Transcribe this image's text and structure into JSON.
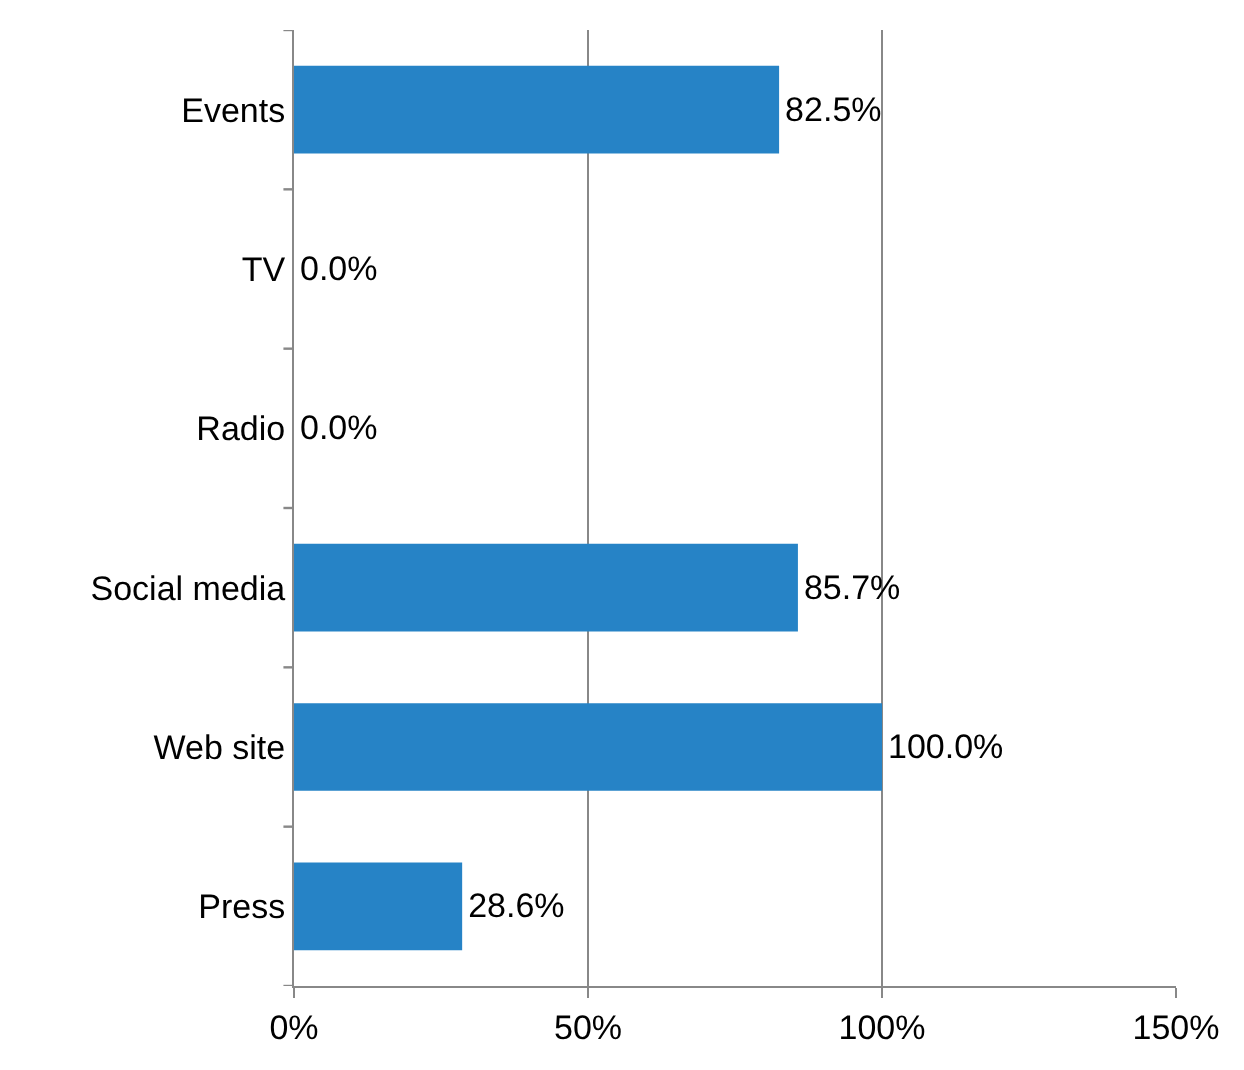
{
  "chart_data": {
    "type": "bar",
    "orientation": "horizontal",
    "categories": [
      "Events",
      "TV",
      "Radio",
      "Social media",
      "Web site",
      "Press"
    ],
    "values": [
      82.5,
      0.0,
      0.0,
      85.7,
      100.0,
      28.6
    ],
    "value_labels": [
      "82.5%",
      "0.0%",
      "0.0%",
      "85.7%",
      "100.0%",
      "28.6%"
    ],
    "color": "#2683c6",
    "xlim": [
      0,
      150
    ],
    "xticks": [
      {
        "value": 0,
        "label": "0%"
      },
      {
        "value": 50,
        "label": "50%"
      },
      {
        "value": 100,
        "label": "100%"
      },
      {
        "value": 150,
        "label": "150%"
      }
    ],
    "grid": "x",
    "legend": false
  }
}
